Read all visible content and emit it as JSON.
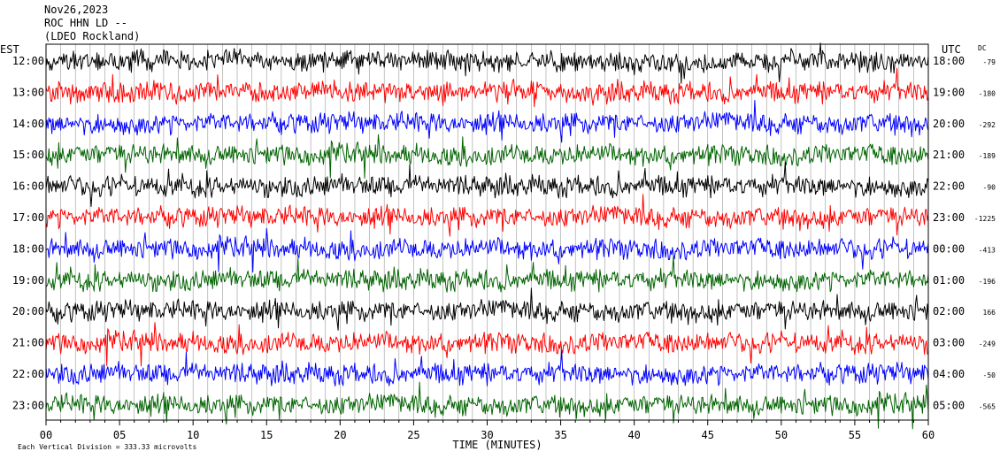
{
  "header": {
    "date": "Nov26,2023",
    "station": "ROC HHN LD --",
    "source": "(LDEO Rockland)"
  },
  "chart_data": {
    "type": "line",
    "title": "",
    "left_axis_label": "EST",
    "right_axis_label": "UTC",
    "dc_label": "DC",
    "xlabel": "TIME (MINUTES)",
    "footer": "Each Vertical Division =  333.33 microvolts",
    "x_ticks": [
      "00",
      "05",
      "10",
      "15",
      "20",
      "25",
      "30",
      "35",
      "40",
      "45",
      "50",
      "55",
      "60"
    ],
    "xlim": [
      0,
      60
    ],
    "grid": true,
    "trace_colors": [
      "#000000",
      "#ff0000",
      "#0000ff",
      "#006400"
    ],
    "rows": [
      {
        "est": "12:00",
        "utc": "18:00",
        "dc": "-79"
      },
      {
        "est": "13:00",
        "utc": "19:00",
        "dc": "-180"
      },
      {
        "est": "14:00",
        "utc": "20:00",
        "dc": "-292"
      },
      {
        "est": "15:00",
        "utc": "21:00",
        "dc": "-189"
      },
      {
        "est": "16:00",
        "utc": "22:00",
        "dc": "-90"
      },
      {
        "est": "17:00",
        "utc": "23:00",
        "dc": "-1225"
      },
      {
        "est": "18:00",
        "utc": "00:00",
        "dc": "-413"
      },
      {
        "est": "19:00",
        "utc": "01:00",
        "dc": "-196"
      },
      {
        "est": "20:00",
        "utc": "02:00",
        "dc": "166"
      },
      {
        "est": "21:00",
        "utc": "03:00",
        "dc": "-249"
      },
      {
        "est": "22:00",
        "utc": "04:00",
        "dc": "-50"
      },
      {
        "est": "23:00",
        "utc": "05:00",
        "dc": "-565"
      }
    ]
  }
}
